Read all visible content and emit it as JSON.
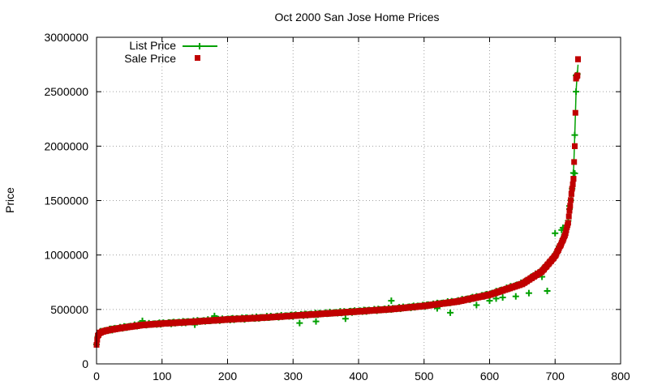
{
  "chart_data": {
    "type": "scatter",
    "title": "Oct 2000 San Jose Home Prices",
    "xlabel": "",
    "ylabel": "Price",
    "xlim": [
      0,
      800
    ],
    "ylim": [
      0,
      3000000
    ],
    "xticks": [
      "0",
      "100",
      "200",
      "300",
      "400",
      "500",
      "600",
      "700",
      "800"
    ],
    "yticks": [
      "0",
      "500000",
      "1000000",
      "1500000",
      "2000000",
      "2500000",
      "3000000"
    ],
    "grid": true,
    "legend_position": "top-left",
    "series": [
      {
        "name": "List Price",
        "style": "linespoints",
        "marker": "plus",
        "color": "#00a000",
        "curve": [
          [
            0,
            175000
          ],
          [
            2,
            260000
          ],
          [
            5,
            290000
          ],
          [
            10,
            300000
          ],
          [
            20,
            315000
          ],
          [
            40,
            335000
          ],
          [
            70,
            360000
          ],
          [
            100,
            372000
          ],
          [
            150,
            390000
          ],
          [
            200,
            410000
          ],
          [
            250,
            425000
          ],
          [
            300,
            445000
          ],
          [
            350,
            465000
          ],
          [
            400,
            485000
          ],
          [
            450,
            505000
          ],
          [
            500,
            535000
          ],
          [
            550,
            575000
          ],
          [
            600,
            640000
          ],
          [
            650,
            740000
          ],
          [
            680,
            860000
          ],
          [
            700,
            1000000
          ],
          [
            710,
            1120000
          ],
          [
            715,
            1200000
          ],
          [
            720,
            1320000
          ],
          [
            725,
            1550000
          ],
          [
            728,
            1750000
          ],
          [
            730,
            2100000
          ],
          [
            732,
            2500000
          ],
          [
            735,
            2750000
          ]
        ],
        "outliers": [
          [
            70,
            395000
          ],
          [
            115,
            375000
          ],
          [
            150,
            360000
          ],
          [
            180,
            440000
          ],
          [
            310,
            375000
          ],
          [
            335,
            390000
          ],
          [
            380,
            415000
          ],
          [
            450,
            580000
          ],
          [
            480,
            520000
          ],
          [
            520,
            510000
          ],
          [
            540,
            470000
          ],
          [
            570,
            590000
          ],
          [
            580,
            540000
          ],
          [
            600,
            580000
          ],
          [
            610,
            600000
          ],
          [
            620,
            610000
          ],
          [
            640,
            620000
          ],
          [
            660,
            650000
          ],
          [
            680,
            800000
          ],
          [
            688,
            670000
          ],
          [
            700,
            1200000
          ],
          [
            710,
            1230000
          ],
          [
            712,
            1250000
          ],
          [
            722,
            1450000
          ],
          [
            730,
            1750000
          ],
          [
            732,
            2650000
          ]
        ]
      },
      {
        "name": "Sale Price",
        "style": "points",
        "marker": "square",
        "color": "#c00000",
        "curve": [
          [
            0,
            175000
          ],
          [
            2,
            260000
          ],
          [
            5,
            285000
          ],
          [
            10,
            298000
          ],
          [
            20,
            312000
          ],
          [
            40,
            332000
          ],
          [
            70,
            357000
          ],
          [
            100,
            370000
          ],
          [
            150,
            388000
          ],
          [
            200,
            408000
          ],
          [
            250,
            423000
          ],
          [
            300,
            442000
          ],
          [
            350,
            462000
          ],
          [
            400,
            482000
          ],
          [
            450,
            503000
          ],
          [
            500,
            532000
          ],
          [
            550,
            572000
          ],
          [
            600,
            635000
          ],
          [
            650,
            735000
          ],
          [
            680,
            850000
          ],
          [
            700,
            990000
          ],
          [
            710,
            1110000
          ],
          [
            715,
            1180000
          ],
          [
            720,
            1300000
          ],
          [
            725,
            1560000
          ],
          [
            728,
            1700000
          ],
          [
            730,
            2000000
          ],
          [
            732,
            2620000
          ],
          [
            734,
            2650000
          ],
          [
            735,
            2800000
          ]
        ]
      }
    ]
  }
}
